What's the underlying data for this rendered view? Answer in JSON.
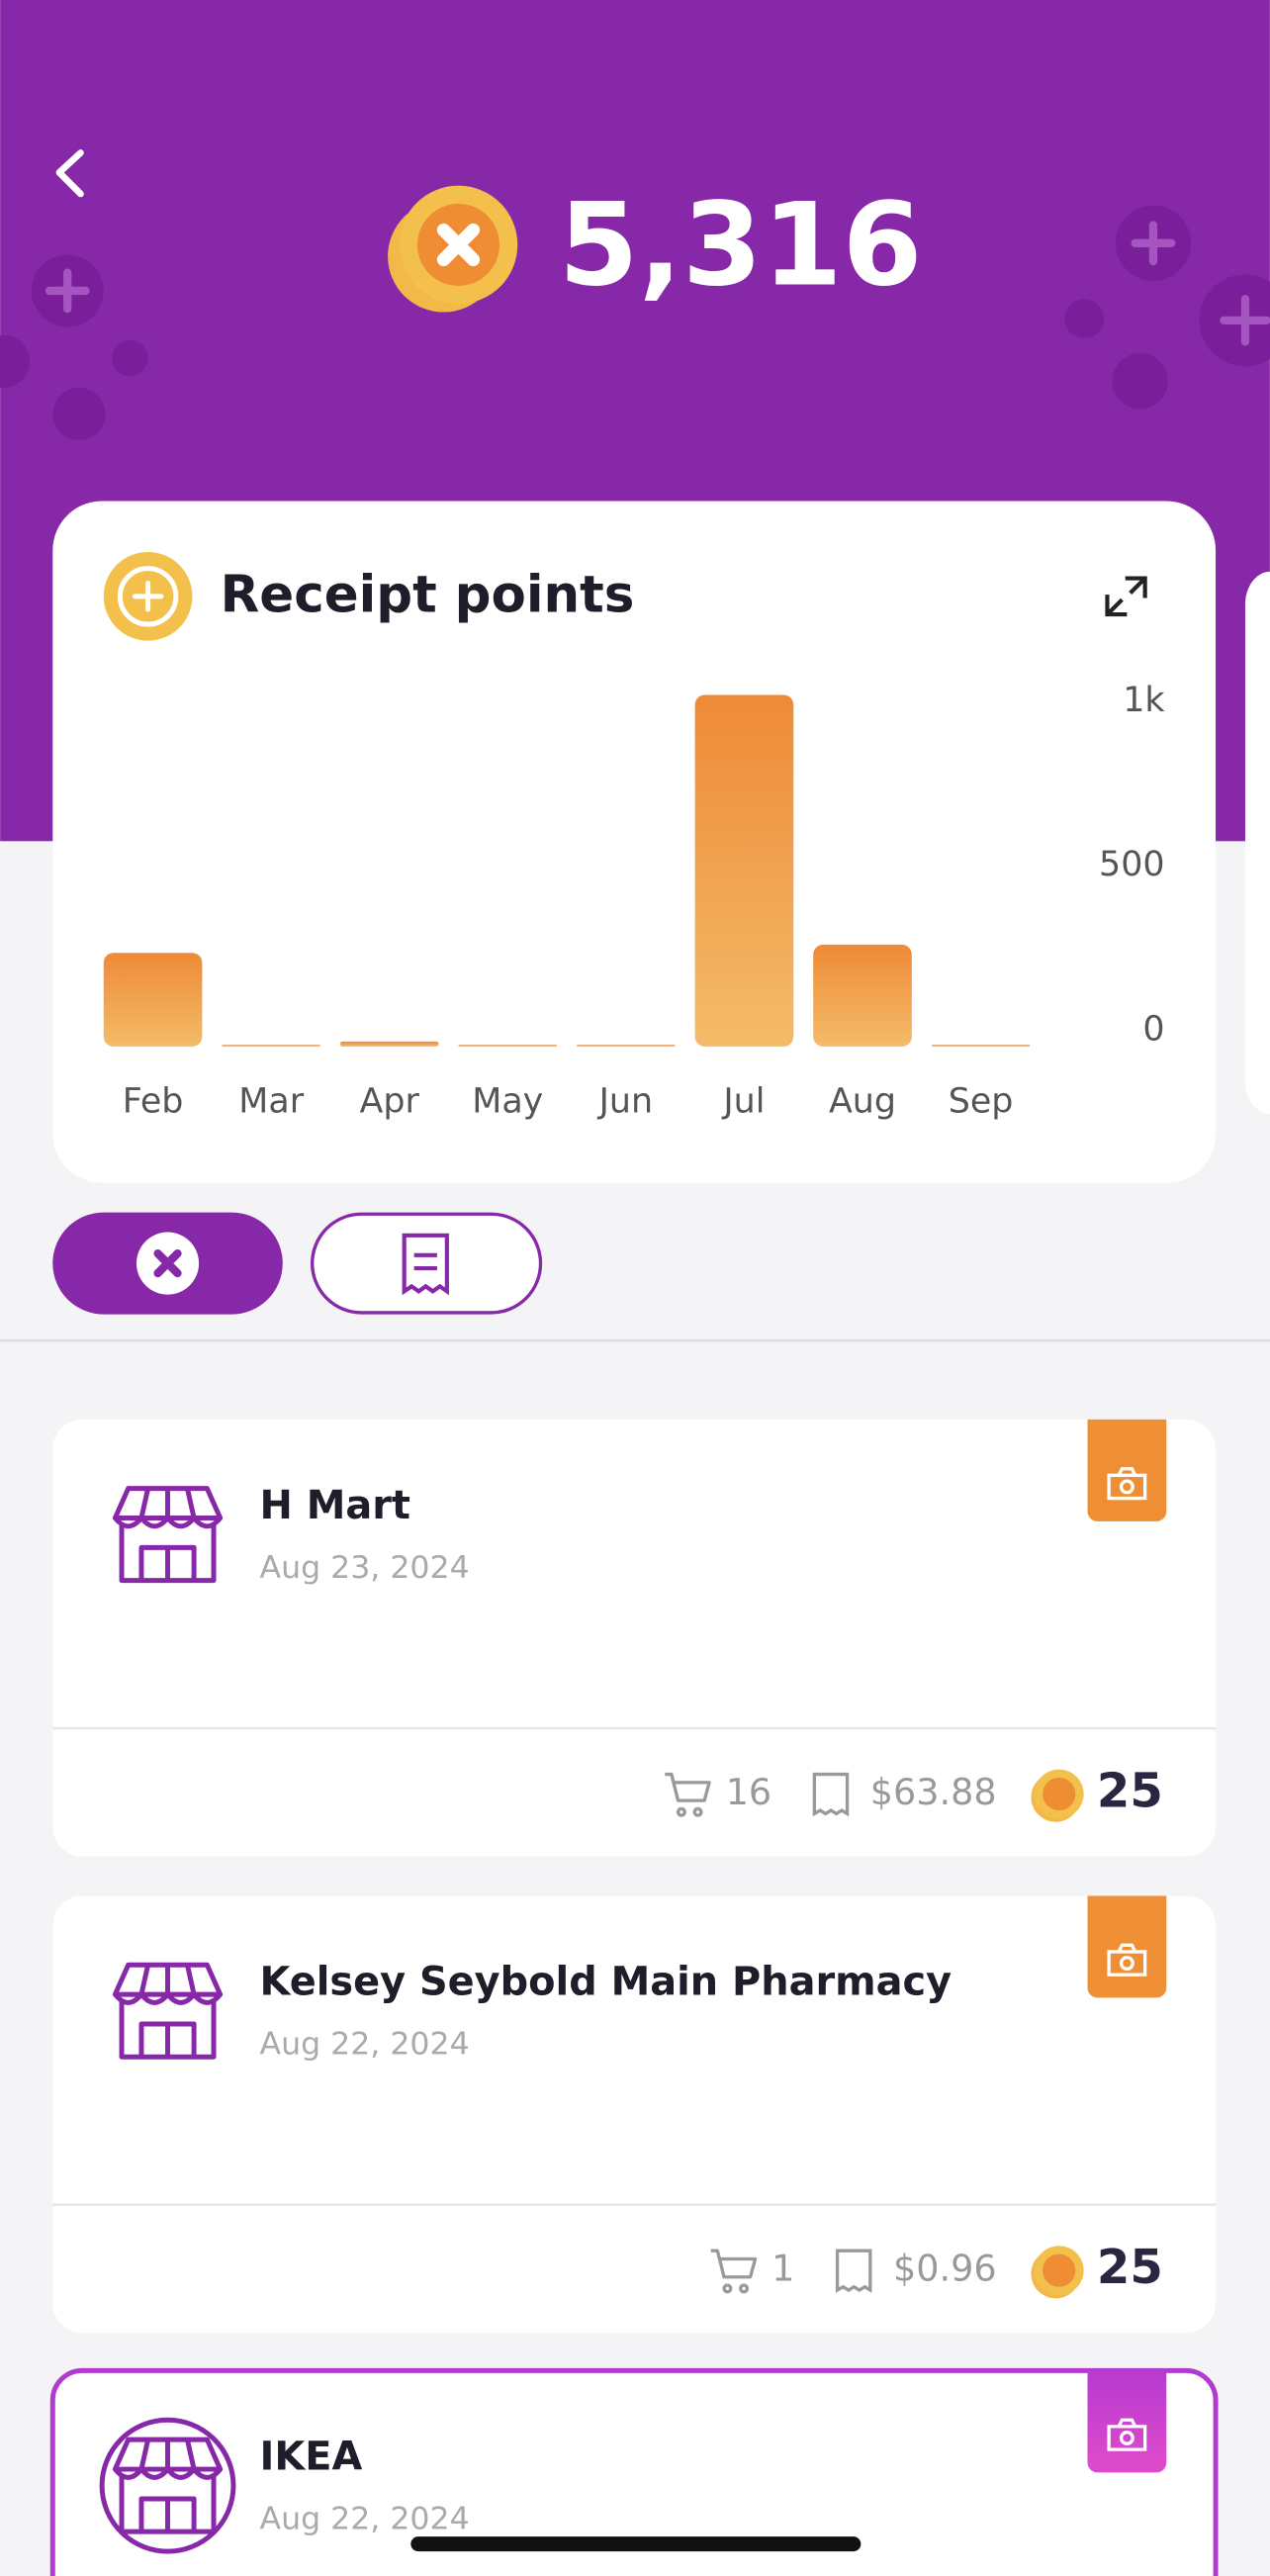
{
  "header": {
    "points": "5,316"
  },
  "chart_data": {
    "type": "bar",
    "title": "Receipt points",
    "categories": [
      "Feb",
      "Mar",
      "Apr",
      "May",
      "Jun",
      "Jul",
      "Aug",
      "Sep"
    ],
    "values": [
      285,
      5,
      15,
      5,
      5,
      1070,
      310,
      5
    ],
    "color": "#ef8f3a",
    "ylim": [
      0,
      1100
    ],
    "yticks": [
      0,
      500,
      {
        "value": 1000,
        "label": "1k"
      }
    ]
  },
  "receipts": [
    {
      "store": "H Mart",
      "date": "Aug 23, 2024",
      "items": "16",
      "total": "$63.88",
      "points": "25"
    },
    {
      "store": "Kelsey Seybold Main Pharmacy",
      "date": "Aug 22, 2024",
      "items": "1",
      "total": "$0.96",
      "points": "25"
    },
    {
      "store": "IKEA",
      "date": "Aug 22, 2024"
    }
  ]
}
